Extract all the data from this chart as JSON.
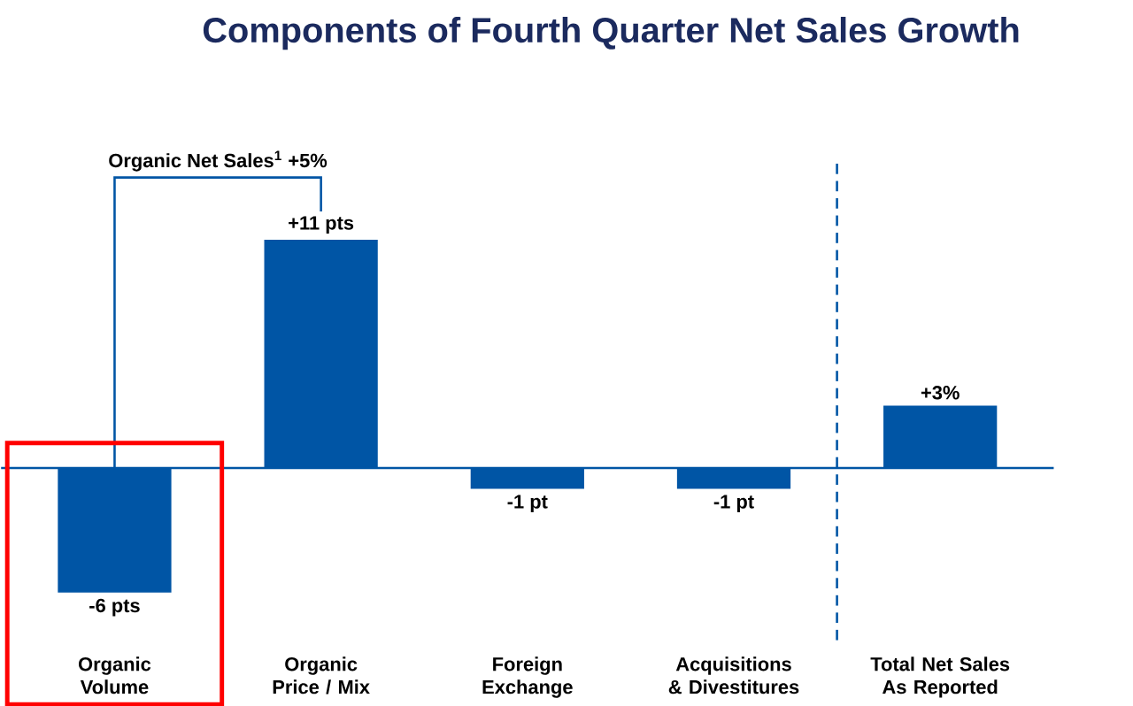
{
  "chart_data": {
    "type": "bar",
    "title": "Components of Fourth Quarter Net Sales Growth",
    "categories": [
      "Organic Volume",
      "Organic Price / Mix",
      "Foreign Exchange",
      "Acquisitions & Divestitures",
      "Total Net Sales As Reported"
    ],
    "values": [
      -6,
      11,
      -1,
      -1,
      3
    ],
    "value_labels": [
      "-6 pts",
      "+11 pts",
      "-1 pt",
      "-1 pt",
      "+3%"
    ],
    "color": "#0055a5",
    "annotations": [
      "Organic Net Sales$^{1}$ +5%"
    ],
    "ref_lines": [
      {
        "axis": "y",
        "value": 0,
        "color": "#0055a5"
      }
    ]
  }
}
